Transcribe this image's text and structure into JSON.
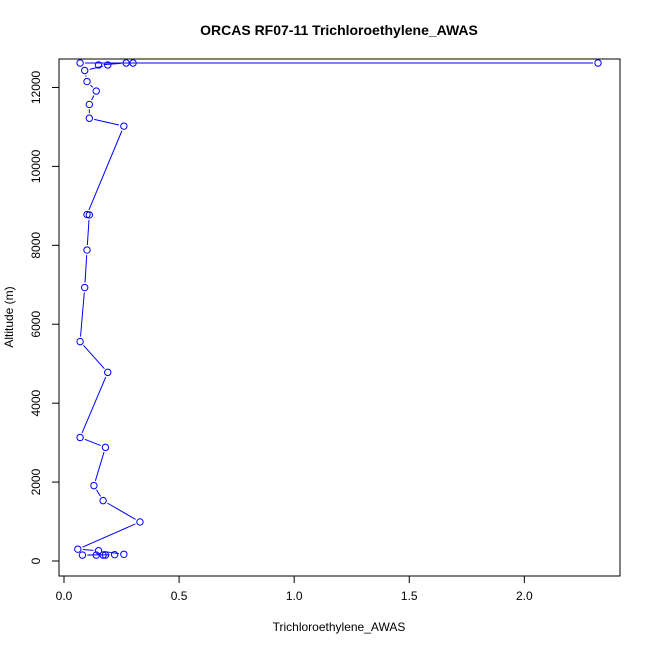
{
  "chart_data": {
    "type": "line",
    "title": "ORCAS RF07-11 Trichloroethylene_AWAS",
    "xlabel": "Trichloroethylene_AWAS",
    "ylabel": "Altitude (m)",
    "xlim": [
      0.0,
      2.4
    ],
    "ylim": [
      0,
      12900
    ],
    "x_ticks": [
      0.0,
      0.5,
      1.0,
      1.5,
      2.0
    ],
    "x_tick_labels": [
      "0.0",
      "0.5",
      "1.0",
      "1.5",
      "2.0"
    ],
    "y_ticks": [
      0,
      2000,
      4000,
      6000,
      8000,
      10000,
      12000
    ],
    "y_tick_labels": [
      "0",
      "2000",
      "4000",
      "6000",
      "8000",
      "10000",
      "12000"
    ],
    "grid": false,
    "markers": "open circles",
    "series": [
      {
        "color": "#0000ff",
        "points": [
          {
            "x": 0.07,
            "y": 12620
          },
          {
            "x": 2.32,
            "y": 12620
          },
          {
            "x": 0.3,
            "y": 12620
          },
          {
            "x": 0.27,
            "y": 12620
          },
          {
            "x": 0.15,
            "y": 12570
          },
          {
            "x": 0.19,
            "y": 12570
          },
          {
            "x": 0.09,
            "y": 12430
          },
          {
            "x": 0.1,
            "y": 12150
          },
          {
            "x": 0.14,
            "y": 11910
          },
          {
            "x": 0.11,
            "y": 11570
          },
          {
            "x": 0.11,
            "y": 11220
          },
          {
            "x": 0.26,
            "y": 11020
          },
          {
            "x": 0.1,
            "y": 8780
          },
          {
            "x": 0.11,
            "y": 8770
          },
          {
            "x": 0.1,
            "y": 7880
          },
          {
            "x": 0.09,
            "y": 6930
          },
          {
            "x": 0.07,
            "y": 5560
          },
          {
            "x": 0.19,
            "y": 4780
          },
          {
            "x": 0.07,
            "y": 3130
          },
          {
            "x": 0.18,
            "y": 2880
          },
          {
            "x": 0.13,
            "y": 1910
          },
          {
            "x": 0.17,
            "y": 1530
          },
          {
            "x": 0.33,
            "y": 990
          },
          {
            "x": 0.06,
            "y": 300
          },
          {
            "x": 0.15,
            "y": 260
          },
          {
            "x": 0.26,
            "y": 170
          },
          {
            "x": 0.22,
            "y": 160
          },
          {
            "x": 0.08,
            "y": 150
          },
          {
            "x": 0.14,
            "y": 150
          },
          {
            "x": 0.17,
            "y": 150
          },
          {
            "x": 0.18,
            "y": 150
          }
        ]
      }
    ]
  }
}
